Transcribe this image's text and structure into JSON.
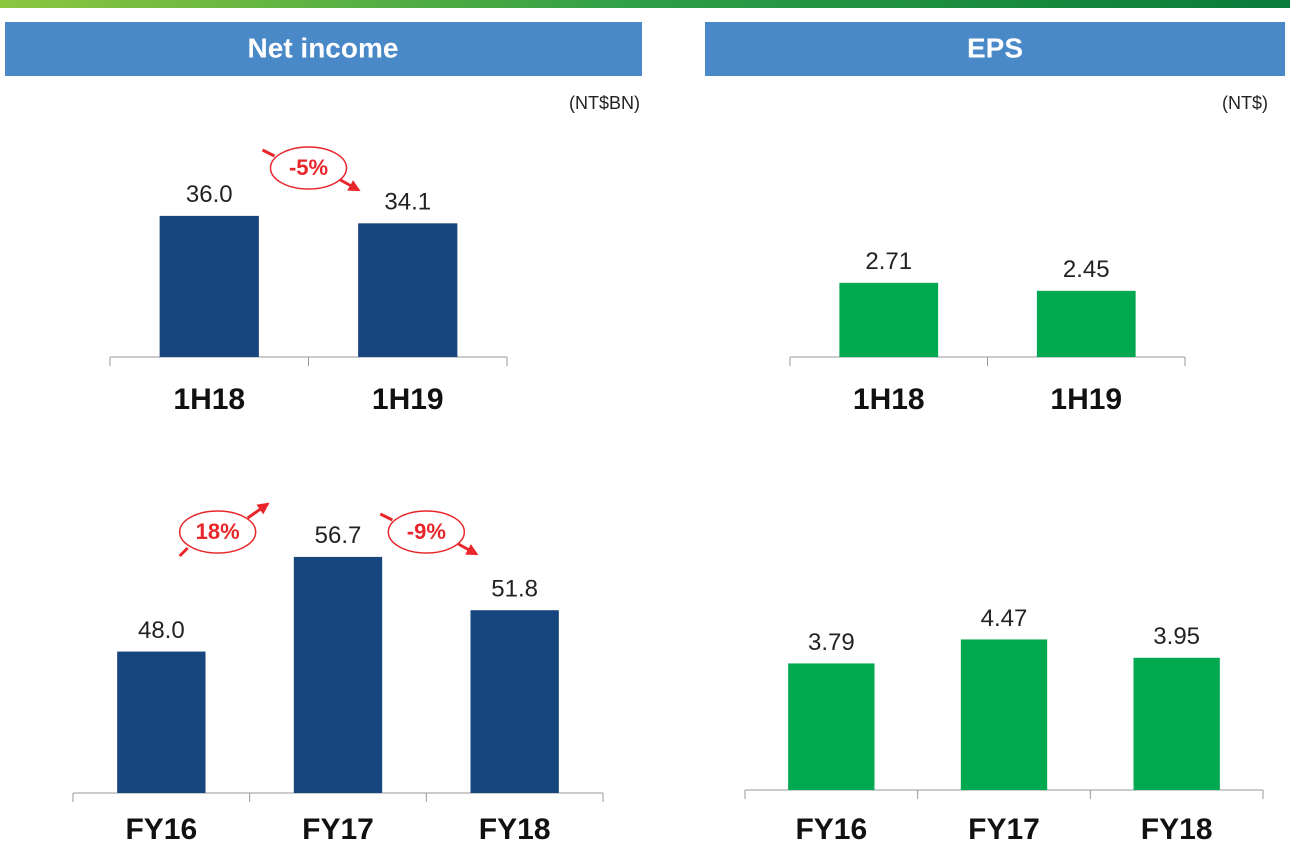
{
  "panels": [
    {
      "title": "Net income",
      "unit": "(NT$BN)"
    },
    {
      "title": "EPS",
      "unit": "(NT$)"
    }
  ],
  "chart_data": [
    {
      "type": "bar",
      "categories": [
        "1H18",
        "1H19"
      ],
      "values": [
        36.0,
        34.1
      ],
      "value_labels": [
        "36.0",
        "34.1"
      ],
      "color": "#17467e",
      "ylim": [
        0,
        50
      ],
      "annotations": [
        "-5%"
      ]
    },
    {
      "type": "bar",
      "categories": [
        "1H18",
        "1H19"
      ],
      "values": [
        2.71,
        2.45
      ],
      "color": "#00a84f",
      "ylim": [
        0.3,
        6.8
      ]
    },
    {
      "type": "bar",
      "categories": [
        "FY16",
        "FY17",
        "FY18"
      ],
      "values": [
        48.0,
        56.7,
        51.8
      ],
      "value_labels": [
        "48.0",
        "56.7",
        "51.8"
      ],
      "color": "#17467e",
      "ylim": [
        35,
        60
      ],
      "annotations": [
        "18%",
        "-9%"
      ]
    },
    {
      "type": "bar",
      "categories": [
        "FY16",
        "FY17",
        "FY18"
      ],
      "values": [
        3.79,
        4.47,
        3.95
      ],
      "color": "#00a84f",
      "ylim": [
        0.2,
        8
      ]
    }
  ]
}
